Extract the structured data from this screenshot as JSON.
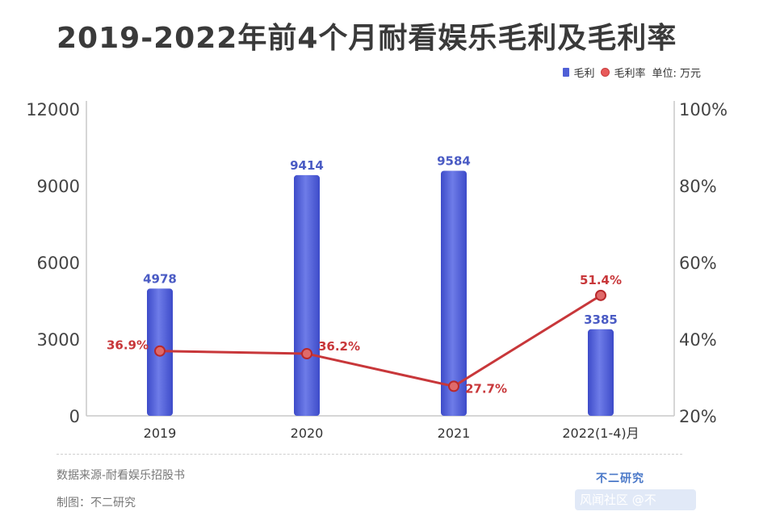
{
  "title": "2019-2022年前4个月耐看娱乐毛利及毛利率",
  "legend": {
    "bar_label": "毛利",
    "line_label": "毛利率",
    "unit": "单位: 万元"
  },
  "footer": {
    "source": "数据来源-耐看娱乐招股书",
    "maker": "制图：不二研究",
    "brand": "不二研究",
    "watermark_bar": "风闻社区 @不"
  },
  "colors": {
    "bar": "#4f5fd6",
    "bar_label": "#4a5bc4",
    "line": "#c8373a",
    "line_label": "#c8373a"
  },
  "chart_data": {
    "type": "bar",
    "categories": [
      "2019",
      "2020",
      "2021",
      "2022(1-4)月"
    ],
    "series": [
      {
        "name": "毛利",
        "type": "bar",
        "axis": "left",
        "values": [
          4978,
          9414,
          9584,
          3385
        ],
        "labels": [
          "4978",
          "9414",
          "9584",
          "3385"
        ]
      },
      {
        "name": "毛利率",
        "type": "line",
        "axis": "right",
        "values": [
          36.9,
          36.2,
          27.7,
          51.4
        ],
        "labels": [
          "36.9%",
          "36.2%",
          "27.7%",
          "51.4%"
        ]
      }
    ],
    "y_left": {
      "ticks": [
        "0",
        "3000",
        "6000",
        "9000",
        "12000"
      ],
      "range": [
        0,
        12000
      ]
    },
    "y_right": {
      "ticks": [
        "20%",
        "40%",
        "60%",
        "80%",
        "100%"
      ],
      "range": [
        20,
        100
      ]
    },
    "grid": false
  }
}
